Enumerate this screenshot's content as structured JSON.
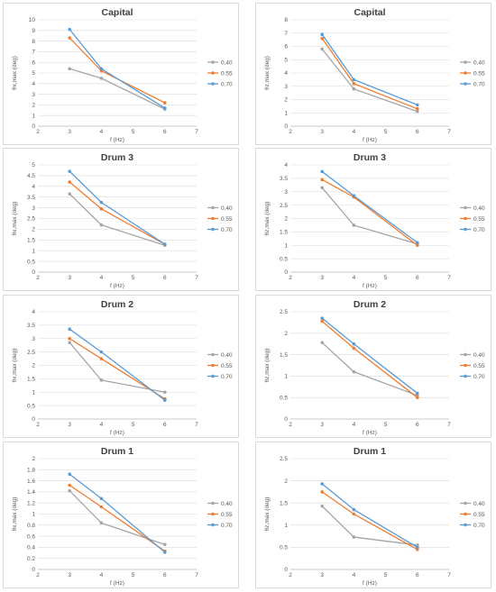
{
  "chart_data": [
    {
      "type": "line",
      "title": "Capital",
      "xlabel": "f (Hz)",
      "ylabel": "θx,max (deg)",
      "x": [
        3,
        4,
        6
      ],
      "xlim": [
        2,
        7
      ],
      "xticks": [
        2,
        3,
        4,
        5,
        6,
        7
      ],
      "ylim": [
        0,
        10
      ],
      "yticks": [
        0,
        1,
        2,
        3,
        4,
        5,
        6,
        7,
        8,
        9,
        10
      ],
      "legend_position": "right",
      "grid": "horizontal",
      "series": [
        {
          "name": "0.40",
          "color": "#a5a5a5",
          "values": [
            5.4,
            4.5,
            1.6
          ]
        },
        {
          "name": "0.55",
          "color": "#ed7d31",
          "values": [
            8.3,
            5.2,
            2.2
          ]
        },
        {
          "name": "0.70",
          "color": "#5b9bd5",
          "values": [
            9.1,
            5.4,
            1.7
          ]
        }
      ]
    },
    {
      "type": "line",
      "title": "Capital",
      "xlabel": "f (Hz)",
      "ylabel": "θz,max (deg)",
      "x": [
        3,
        4,
        6
      ],
      "xlim": [
        2,
        7
      ],
      "xticks": [
        2,
        3,
        4,
        5,
        6,
        7
      ],
      "ylim": [
        0,
        8
      ],
      "yticks": [
        0,
        1,
        2,
        3,
        4,
        5,
        6,
        7,
        8
      ],
      "legend_position": "right",
      "grid": "horizontal",
      "series": [
        {
          "name": "0.40",
          "color": "#a5a5a5",
          "values": [
            5.8,
            2.8,
            1.1
          ]
        },
        {
          "name": "0.55",
          "color": "#ed7d31",
          "values": [
            6.6,
            3.2,
            1.3
          ]
        },
        {
          "name": "0.70",
          "color": "#5b9bd5",
          "values": [
            6.9,
            3.5,
            1.6
          ]
        }
      ]
    },
    {
      "type": "line",
      "title": "Drum 3",
      "xlabel": "f (Hz)",
      "ylabel": "θx,max (deg)",
      "x": [
        3,
        4,
        6
      ],
      "xlim": [
        2,
        7
      ],
      "xticks": [
        2,
        3,
        4,
        5,
        6,
        7
      ],
      "ylim": [
        0,
        5
      ],
      "yticks": [
        0,
        0.5,
        1,
        1.5,
        2,
        2.5,
        3,
        3.5,
        4,
        4.5,
        5
      ],
      "legend_position": "right",
      "grid": "horizontal",
      "series": [
        {
          "name": "0.40",
          "color": "#a5a5a5",
          "values": [
            3.65,
            2.2,
            1.25
          ]
        },
        {
          "name": "0.55",
          "color": "#ed7d31",
          "values": [
            4.2,
            2.95,
            1.3
          ]
        },
        {
          "name": "0.70",
          "color": "#5b9bd5",
          "values": [
            4.7,
            3.25,
            1.3
          ]
        }
      ]
    },
    {
      "type": "line",
      "title": "Drum 3",
      "xlabel": "f (Hz)",
      "ylabel": "θz,max (deg)",
      "x": [
        3,
        4,
        6
      ],
      "xlim": [
        2,
        7
      ],
      "xticks": [
        2,
        3,
        4,
        5,
        6,
        7
      ],
      "ylim": [
        0,
        4
      ],
      "yticks": [
        0,
        0.5,
        1,
        1.5,
        2,
        2.5,
        3,
        3.5,
        4
      ],
      "legend_position": "right",
      "grid": "horizontal",
      "series": [
        {
          "name": "0.40",
          "color": "#a5a5a5",
          "values": [
            3.15,
            1.75,
            1.05
          ]
        },
        {
          "name": "0.55",
          "color": "#ed7d31",
          "values": [
            3.45,
            2.8,
            1.0
          ]
        },
        {
          "name": "0.70",
          "color": "#5b9bd5",
          "values": [
            3.75,
            2.85,
            1.1
          ]
        }
      ]
    },
    {
      "type": "line",
      "title": "Drum 2",
      "xlabel": "f (Hz)",
      "ylabel": "θx,max (deg)",
      "x": [
        3,
        4,
        6
      ],
      "xlim": [
        2,
        7
      ],
      "xticks": [
        2,
        3,
        4,
        5,
        6,
        7
      ],
      "ylim": [
        0,
        4
      ],
      "yticks": [
        0,
        0.5,
        1,
        1.5,
        2,
        2.5,
        3,
        3.5,
        4
      ],
      "legend_position": "right",
      "grid": "horizontal",
      "series": [
        {
          "name": "0.40",
          "color": "#a5a5a5",
          "values": [
            2.85,
            1.45,
            1.0
          ]
        },
        {
          "name": "0.55",
          "color": "#ed7d31",
          "values": [
            3.0,
            2.25,
            0.75
          ]
        },
        {
          "name": "0.70",
          "color": "#5b9bd5",
          "values": [
            3.35,
            2.5,
            0.7
          ]
        }
      ]
    },
    {
      "type": "line",
      "title": "Drum 2",
      "xlabel": "f (Hz)",
      "ylabel": "θz,max (deg)",
      "x": [
        3,
        4,
        6
      ],
      "xlim": [
        2,
        7
      ],
      "xticks": [
        2,
        3,
        4,
        5,
        6,
        7
      ],
      "ylim": [
        0,
        2.5
      ],
      "yticks": [
        0,
        0.5,
        1,
        1.5,
        2,
        2.5
      ],
      "legend_position": "right",
      "grid": "horizontal",
      "series": [
        {
          "name": "0.40",
          "color": "#a5a5a5",
          "values": [
            1.78,
            1.1,
            0.55
          ]
        },
        {
          "name": "0.55",
          "color": "#ed7d31",
          "values": [
            2.28,
            1.65,
            0.5
          ]
        },
        {
          "name": "0.70",
          "color": "#5b9bd5",
          "values": [
            2.35,
            1.75,
            0.6
          ]
        }
      ]
    },
    {
      "type": "line",
      "title": "Drum 1",
      "xlabel": "f (Hz)",
      "ylabel": "θx,max (deg)",
      "x": [
        3,
        4,
        6
      ],
      "xlim": [
        2,
        7
      ],
      "xticks": [
        2,
        3,
        4,
        5,
        6,
        7
      ],
      "ylim": [
        0,
        2
      ],
      "yticks": [
        0,
        0.2,
        0.4,
        0.6,
        0.8,
        1,
        1.2,
        1.4,
        1.6,
        1.8,
        2
      ],
      "legend_position": "right",
      "grid": "horizontal",
      "series": [
        {
          "name": "0.40",
          "color": "#a5a5a5",
          "values": [
            1.42,
            0.84,
            0.45
          ]
        },
        {
          "name": "0.55",
          "color": "#ed7d31",
          "values": [
            1.52,
            1.13,
            0.33
          ]
        },
        {
          "name": "0.70",
          "color": "#5b9bd5",
          "values": [
            1.72,
            1.28,
            0.31
          ]
        }
      ]
    },
    {
      "type": "line",
      "title": "Drum 1",
      "xlabel": "f (Hz)",
      "ylabel": "θz,max (deg)",
      "x": [
        3,
        4,
        6
      ],
      "xlim": [
        2,
        7
      ],
      "xticks": [
        2,
        3,
        4,
        5,
        6,
        7
      ],
      "ylim": [
        0,
        2.5
      ],
      "yticks": [
        0,
        0.5,
        1,
        1.5,
        2,
        2.5
      ],
      "legend_position": "right",
      "grid": "horizontal",
      "series": [
        {
          "name": "0.40",
          "color": "#a5a5a5",
          "values": [
            1.43,
            0.73,
            0.55
          ]
        },
        {
          "name": "0.55",
          "color": "#ed7d31",
          "values": [
            1.75,
            1.25,
            0.45
          ]
        },
        {
          "name": "0.70",
          "color": "#5b9bd5",
          "values": [
            1.93,
            1.35,
            0.5
          ]
        }
      ]
    }
  ]
}
